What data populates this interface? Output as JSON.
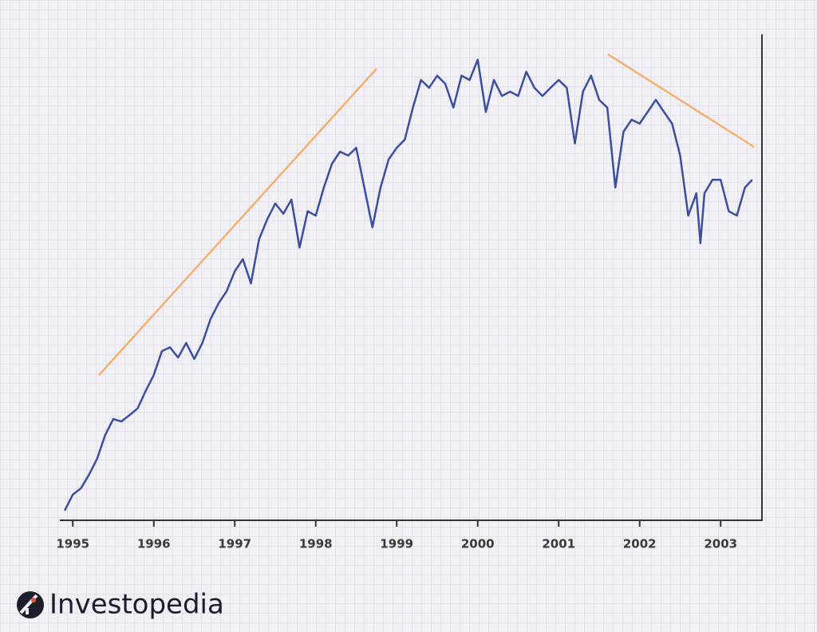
{
  "chart_data": {
    "type": "line",
    "x": [
      1994.9,
      1995.0,
      1995.1,
      1995.2,
      1995.3,
      1995.4,
      1995.5,
      1995.6,
      1995.7,
      1995.8,
      1995.9,
      1996.0,
      1996.1,
      1996.2,
      1996.3,
      1996.4,
      1996.5,
      1996.6,
      1996.7,
      1996.8,
      1996.9,
      1997.0,
      1997.1,
      1997.2,
      1997.3,
      1997.4,
      1997.5,
      1997.6,
      1997.7,
      1997.8,
      1997.9,
      1998.0,
      1998.1,
      1998.2,
      1998.3,
      1998.4,
      1998.5,
      1998.6,
      1998.7,
      1998.8,
      1998.9,
      1999.0,
      1999.1,
      1999.2,
      1999.3,
      1999.4,
      1999.5,
      1999.6,
      1999.7,
      1999.8,
      1999.9,
      2000.0,
      2000.1,
      2000.2,
      2000.3,
      2000.4,
      2000.5,
      2000.6,
      2000.7,
      2000.8,
      2000.9,
      2001.0,
      2001.1,
      2001.2,
      2001.3,
      2001.4,
      2001.5,
      2001.6,
      2001.7,
      2001.8,
      2001.9,
      2002.0,
      2002.2,
      2002.3,
      2002.4,
      2002.5,
      2002.6,
      2002.7,
      2002.75,
      2002.8,
      2002.9,
      2003.0,
      2003.1,
      2003.2,
      2003.3,
      2003.39
    ],
    "series": [
      {
        "color": "#3b4f9e",
        "values": [
          2,
          5.3,
          6.6,
          9.4,
          12.7,
          17.6,
          20.9,
          20.4,
          21.7,
          23.1,
          26.7,
          30,
          34.9,
          35.7,
          33.6,
          36.6,
          33.3,
          36.6,
          41.5,
          44.8,
          47.3,
          51.4,
          53.9,
          48.9,
          58,
          62.1,
          65.4,
          63.3,
          66.2,
          56.3,
          63.8,
          62.9,
          68.7,
          73.6,
          76.1,
          75.3,
          76.9,
          68.7,
          60.5,
          68.7,
          74.5,
          76.9,
          78.6,
          85.2,
          90.9,
          89.3,
          91.8,
          90.1,
          85.2,
          91.8,
          90.9,
          95.1,
          84.3,
          90.9,
          87.6,
          88.5,
          87.6,
          92.6,
          89.3,
          87.6,
          89.3,
          90.9,
          89.3,
          77.8,
          88.5,
          91.8,
          86.8,
          85.2,
          68.7,
          80.2,
          82.7,
          81.9,
          86.8,
          84.3,
          81.9,
          75.3,
          62.9,
          67.5,
          57.2,
          67.5,
          70.3,
          70.3,
          63.8,
          62.9,
          68.7,
          70.3
        ]
      }
    ],
    "xlim": [
      1994.84,
      2003.51
    ],
    "xticks": [
      1995,
      1996,
      1997,
      1998,
      1999,
      2000,
      2001,
      2002,
      2003
    ],
    "ylim": [
      0,
      100
    ]
  },
  "brand": "Investopedia"
}
